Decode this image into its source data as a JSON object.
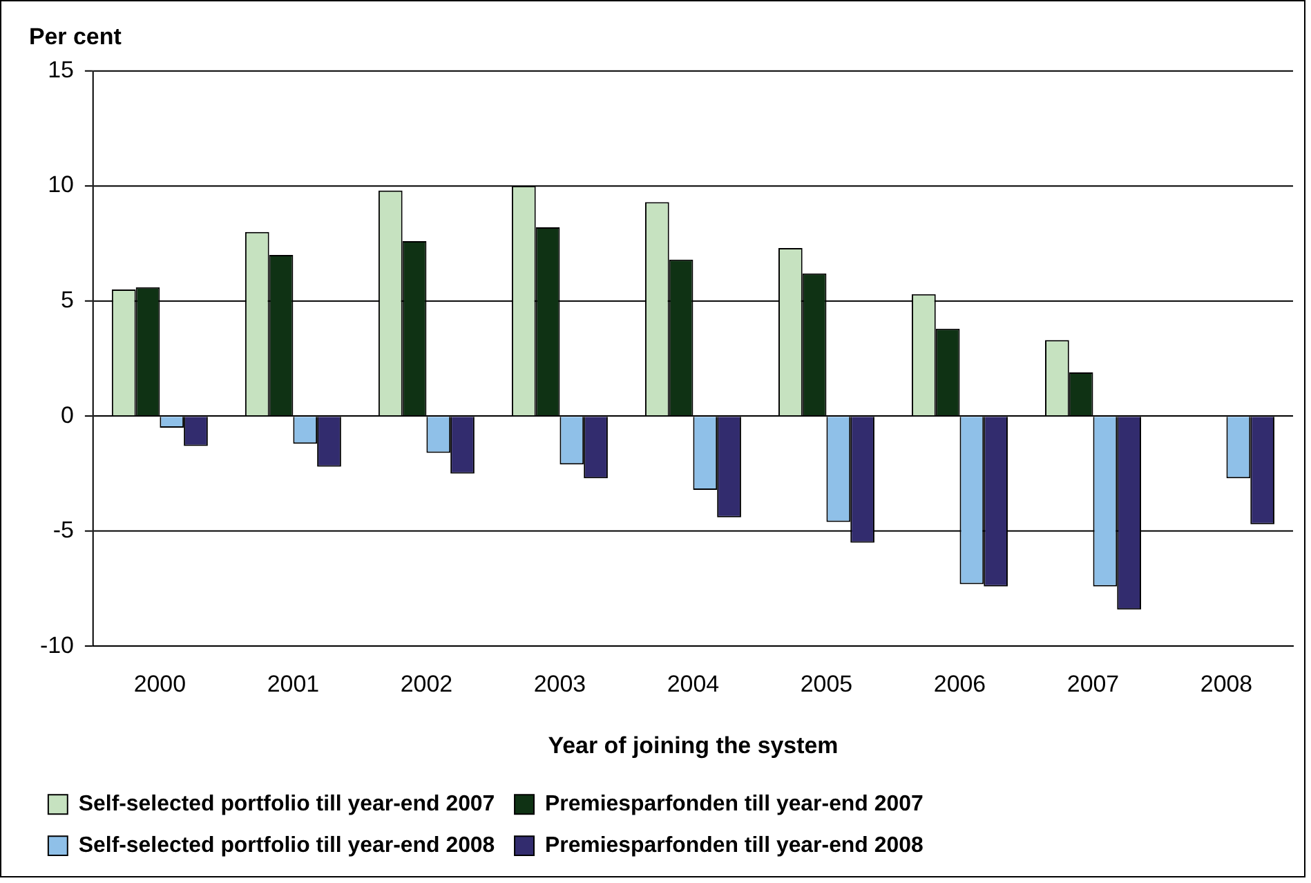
{
  "chart_data": {
    "type": "bar",
    "ylabel": "Per cent",
    "xlabel": "Year of joining the system",
    "categories": [
      "2000",
      "2001",
      "2002",
      "2003",
      "2004",
      "2005",
      "2006",
      "2007",
      "2008"
    ],
    "series": [
      {
        "name": "Self-selected portfolio till year-end 2007",
        "color": "#c6e2c0",
        "values": [
          5.5,
          8.0,
          9.8,
          10.0,
          9.3,
          7.3,
          5.3,
          3.3,
          null
        ]
      },
      {
        "name": "Premiesparfonden till year-end 2007",
        "color": "#0f3214",
        "values": [
          5.6,
          7.0,
          7.6,
          8.2,
          6.8,
          6.2,
          3.8,
          1.9,
          null
        ]
      },
      {
        "name": "Self-selected portfolio till year-end 2008",
        "color": "#8fc0e8",
        "values": [
          -0.5,
          -1.2,
          -1.6,
          -2.1,
          -3.2,
          -4.6,
          -7.3,
          -7.4,
          -2.7
        ]
      },
      {
        "name": "Premiesparfonden till year-end 2008",
        "color": "#322c6e",
        "values": [
          -1.3,
          -2.2,
          -2.5,
          -2.7,
          -4.4,
          -5.5,
          -7.4,
          -8.4,
          -4.7
        ]
      }
    ],
    "ylim": [
      -10,
      15
    ],
    "yticks": [
      -10,
      -5,
      0,
      5,
      10,
      15
    ],
    "grid": "y",
    "legend": "bottom"
  }
}
